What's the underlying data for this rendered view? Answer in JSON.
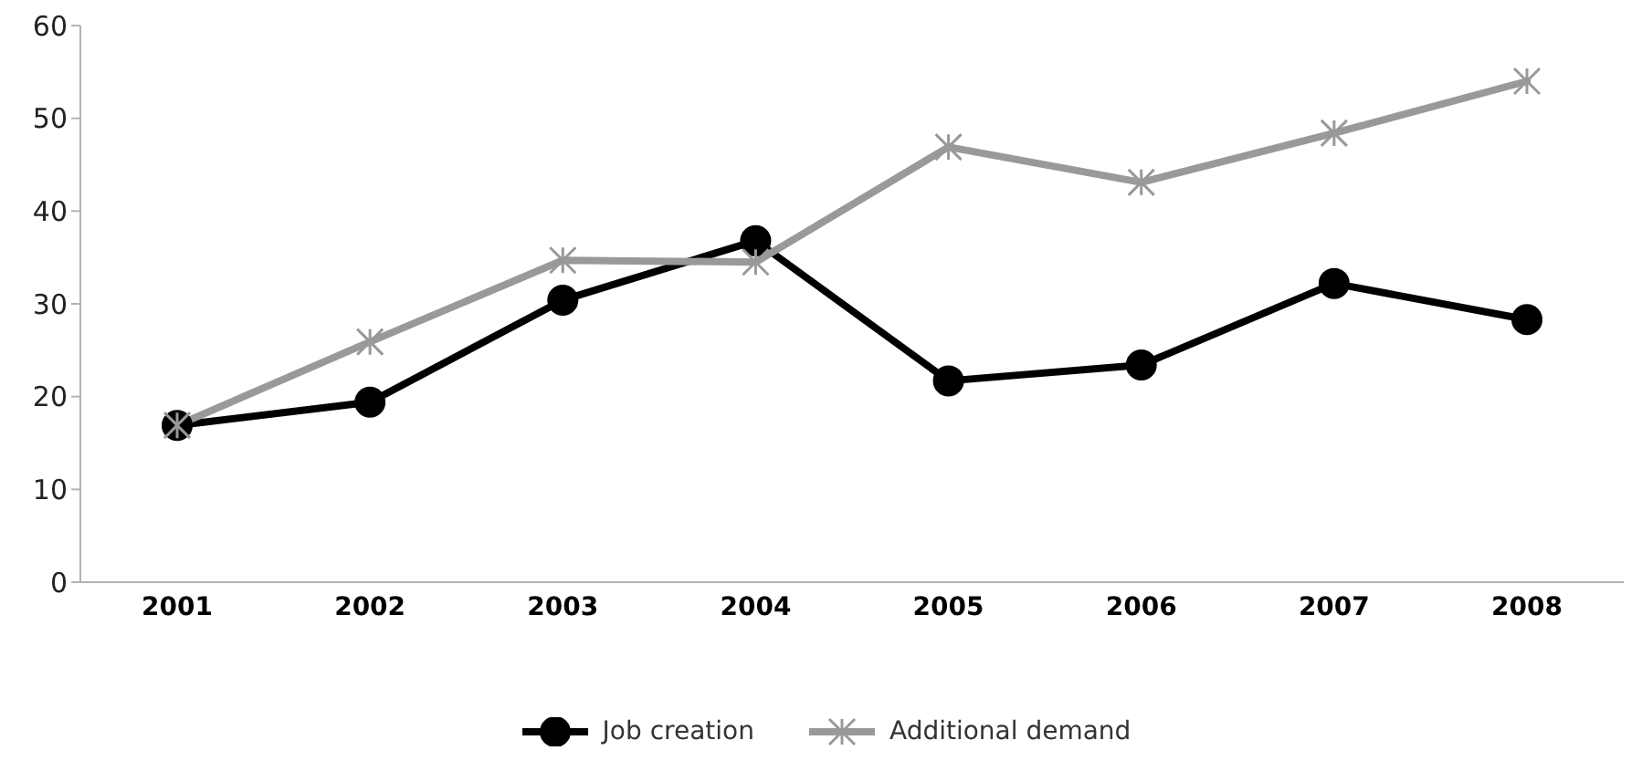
{
  "chart_data": {
    "type": "line",
    "categories": [
      "2001",
      "2002",
      "2003",
      "2004",
      "2005",
      "2006",
      "2007",
      "2008"
    ],
    "series": [
      {
        "name": "Job creation",
        "color": "#000000",
        "marker": "circle",
        "values": [
          16.9,
          19.4,
          30.4,
          36.8,
          21.7,
          23.4,
          32.2,
          28.3
        ]
      },
      {
        "name": "Additional demand",
        "color": "#999999",
        "marker": "cross",
        "values": [
          16.9,
          25.9,
          34.7,
          34.5,
          46.9,
          43.1,
          48.4,
          54.0
        ]
      }
    ],
    "ylim": [
      0,
      60
    ],
    "yticks": [
      0,
      10,
      20,
      30,
      40,
      50,
      60
    ],
    "grid": false,
    "legend": "bottom",
    "line_style": "solid"
  }
}
